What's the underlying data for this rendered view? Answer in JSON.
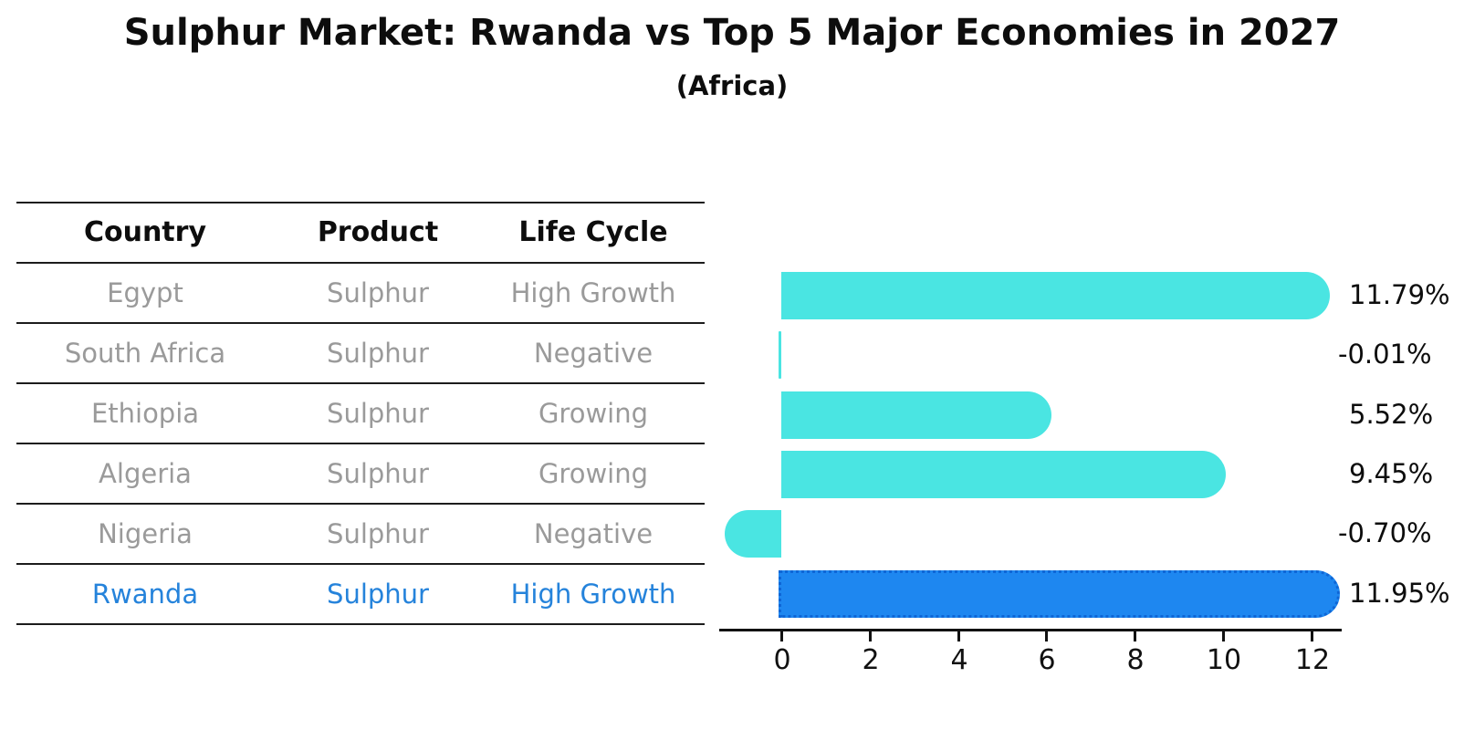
{
  "title": "Sulphur Market: Rwanda vs Top 5 Major Economies in 2027",
  "subtitle": "(Africa)",
  "table": {
    "headers": [
      "Country",
      "Product",
      "Life Cycle"
    ],
    "rows": [
      {
        "country": "Egypt",
        "product": "Sulphur",
        "life_cycle": "High Growth"
      },
      {
        "country": "South Africa",
        "product": "Sulphur",
        "life_cycle": "Negative"
      },
      {
        "country": "Ethiopia",
        "product": "Sulphur",
        "life_cycle": "Growing"
      },
      {
        "country": "Algeria",
        "product": "Sulphur",
        "life_cycle": "Growing"
      },
      {
        "country": "Nigeria",
        "product": "Sulphur",
        "life_cycle": "Negative"
      },
      {
        "country": "Rwanda",
        "product": "Sulphur",
        "life_cycle": "High Growth"
      }
    ]
  },
  "chart_data": {
    "type": "bar",
    "orientation": "horizontal",
    "title": "Sulphur Market: Rwanda vs Top 5 Major Economies in 2027",
    "subtitle": "(Africa)",
    "categories": [
      "Egypt",
      "South Africa",
      "Ethiopia",
      "Algeria",
      "Nigeria",
      "Rwanda"
    ],
    "values": [
      11.79,
      -0.01,
      5.52,
      9.45,
      -0.7,
      11.95
    ],
    "value_labels": [
      "11.79%",
      "-0.01%",
      "5.52%",
      "9.45%",
      "-0.70%",
      "11.95%"
    ],
    "unit": "%",
    "x_ticks": [
      0,
      2,
      4,
      6,
      8,
      10,
      12
    ],
    "xlim": [
      -1.6,
      12.7
    ],
    "grid": false,
    "legend": false,
    "bar_color": "#4ae5e2",
    "highlight_color": "#1e87f0",
    "highlight_index": 5,
    "highlight_category": "Rwanda",
    "highlight_text_color": "#2583db"
  }
}
